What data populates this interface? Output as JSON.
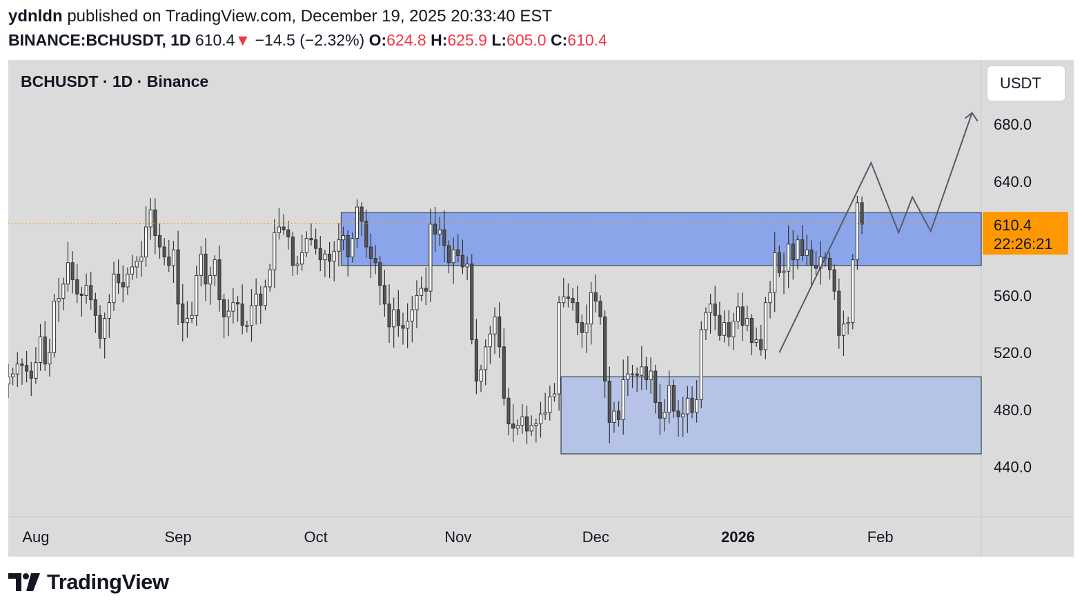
{
  "header": {
    "username": "ydnldn",
    "published_text": "published on TradingView.com, December 19, 2025 20:33:40 EST",
    "symbol": "BINANCE:BCHUSDT, 1D",
    "last": "610.4",
    "change_arrow": "▼",
    "change": "−14.5 (−2.32%)",
    "o_label": "O:",
    "o_value": "624.8",
    "h_label": "H:",
    "h_value": "625.9",
    "l_label": "L:",
    "l_value": "605.0",
    "c_label": "C:",
    "c_value": "610.4"
  },
  "chart_legend": "BCHUSDT · 1D · Binance",
  "currency_button": "USDT",
  "price_label": {
    "price": "610.4",
    "countdown": "22:26:21"
  },
  "brand": {
    "name": "TradingView",
    "icon": "tradingview-logo-icon"
  },
  "colors": {
    "background": "#dbdbdb",
    "candle_up_body": "#ffffff",
    "candle_down_body": "#555555",
    "candle_outline": "#333333",
    "zone_upper": "#8aa5ea",
    "zone_lower": "#b5c3e6",
    "price_line": "#ff9800",
    "price_badge": "#ff9800",
    "negative": "#f23645"
  },
  "chart_data": {
    "type": "candlestick",
    "title": "BCHUSDT · 1D · Binance",
    "ylim": [
      405,
      725
    ],
    "y_ticks": [
      "680.0",
      "640.0",
      "560.0",
      "520.0",
      "480.0",
      "440.0"
    ],
    "y_tick_values": [
      680,
      640,
      560,
      520,
      480,
      440
    ],
    "x_tick_labels": [
      {
        "label": "Aug",
        "date": "2025-08-01"
      },
      {
        "label": "Sep",
        "date": "2025-09-01"
      },
      {
        "label": "Oct",
        "date": "2025-10-01"
      },
      {
        "label": "Nov",
        "date": "2025-11-01"
      },
      {
        "label": "Dec",
        "date": "2025-12-01"
      },
      {
        "label": "2026",
        "date": "2026-01-01",
        "bold": true
      },
      {
        "label": "Feb",
        "date": "2026-02-01"
      }
    ],
    "x_range": [
      "2025-07-26",
      "2026-02-23"
    ],
    "first_candle_date": "2025-07-26",
    "last_price": 610.4,
    "closes": [
      503,
      505,
      512,
      511,
      507,
      502,
      513,
      531,
      512,
      520,
      556,
      558,
      568,
      583,
      571,
      561,
      560,
      567,
      557,
      546,
      530,
      544,
      555,
      575,
      569,
      566,
      575,
      580,
      584,
      587,
      608,
      620,
      602,
      594,
      587,
      581,
      592,
      554,
      541,
      544,
      546,
      574,
      589,
      568,
      574,
      585,
      557,
      545,
      549,
      555,
      554,
      539,
      539,
      553,
      561,
      553,
      566,
      578,
      604,
      608,
      606,
      601,
      581,
      582,
      590,
      600,
      599,
      593,
      585,
      589,
      584,
      591,
      599,
      602,
      587,
      600,
      622,
      612,
      594,
      586,
      583,
      567,
      554,
      538,
      550,
      539,
      537,
      542,
      550,
      560,
      565,
      563,
      610,
      603,
      606,
      595,
      583,
      592,
      588,
      580,
      582,
      529,
      500,
      508,
      524,
      533,
      545,
      524,
      488,
      470,
      467,
      469,
      475,
      465,
      469,
      470,
      477,
      478,
      489,
      491,
      555,
      559,
      558,
      555,
      541,
      534,
      540,
      562,
      556,
      545,
      500,
      471,
      479,
      473,
      501,
      505,
      505,
      504,
      510,
      501,
      507,
      485,
      474,
      478,
      497,
      479,
      475,
      477,
      488,
      478,
      487,
      536,
      548,
      554,
      546,
      532,
      541,
      531,
      542,
      552,
      539,
      544,
      527,
      529,
      522,
      555,
      562,
      590,
      576,
      577,
      596,
      585,
      599,
      588,
      592,
      581,
      579,
      587,
      586,
      578,
      563,
      532,
      540,
      541,
      585,
      625,
      610
    ]
  }
}
